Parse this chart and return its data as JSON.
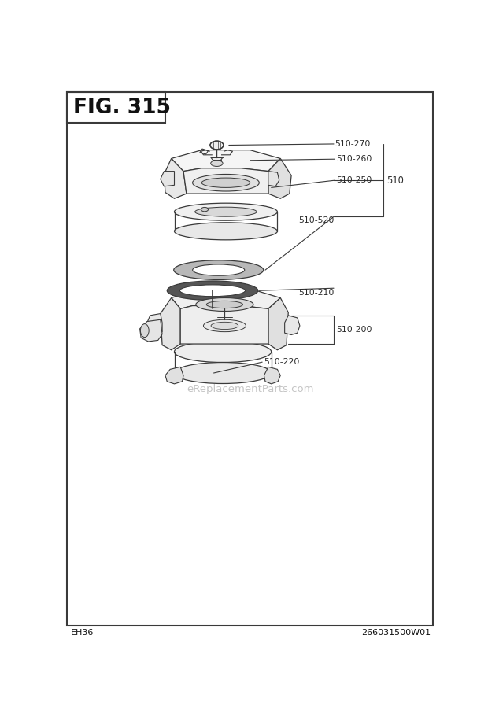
{
  "title": "FIG. 315",
  "bg_color": "#ffffff",
  "border_color": "#3a3a3a",
  "fig_width": 6.2,
  "fig_height": 9.15,
  "bottom_left": "EH36",
  "bottom_right": "266031500W01",
  "watermark": "eReplacementParts.com",
  "line_color": "#3a3a3a",
  "lw": 0.9
}
